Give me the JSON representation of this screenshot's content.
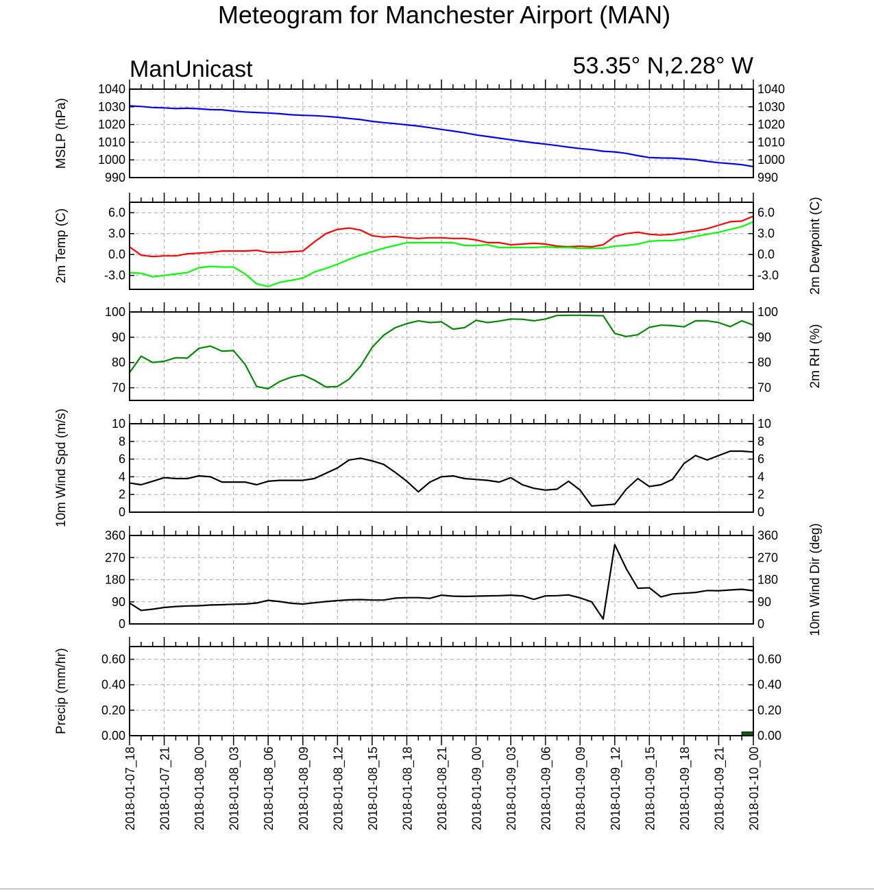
{
  "header": {
    "title": "Meteogram for Manchester Airport (MAN)",
    "source": "ManUnicast",
    "location": "53.35° N,2.28° W"
  },
  "x_axis": {
    "labels": [
      "2018-01-07_18",
      "2018-01-07_21",
      "2018-01-08_00",
      "2018-01-08_03",
      "2018-01-08_06",
      "2018-01-08_09",
      "2018-01-08_12",
      "2018-01-08_15",
      "2018-01-08_18",
      "2018-01-08_21",
      "2018-01-09_00",
      "2018-01-09_03",
      "2018-01-09_06",
      "2018-01-09_09",
      "2018-01-09_12",
      "2018-01-09_15",
      "2018-01-09_18",
      "2018-01-09_21",
      "2018-01-10_00"
    ]
  },
  "chart_data": [
    {
      "type": "line",
      "ylabel": "MSLP (hPa)",
      "ylim": [
        990,
        1040
      ],
      "yticks": [
        990,
        1000,
        1010,
        1020,
        1030,
        1040
      ],
      "right_ticks": true,
      "xlim": [
        0,
        54
      ],
      "grid": true,
      "series": [
        {
          "color": "#0000ff",
          "x": [
            0,
            1,
            2,
            3,
            4,
            5,
            6,
            7,
            8,
            9,
            10,
            11,
            12,
            13,
            14,
            15,
            16,
            17,
            18,
            19,
            20,
            21,
            22,
            23,
            24,
            25,
            26,
            27,
            28,
            29,
            30,
            31,
            32,
            33,
            34,
            35,
            36,
            37,
            38,
            39,
            40,
            41,
            42,
            43,
            44,
            45,
            46,
            47,
            48,
            49,
            50,
            51,
            52,
            53,
            54
          ],
          "y": [
            1030.6,
            1030.2,
            1029.6,
            1029.4,
            1029.0,
            1029.2,
            1028.9,
            1028.4,
            1028.3,
            1027.6,
            1027.1,
            1026.8,
            1026.5,
            1026.1,
            1025.5,
            1025.2,
            1025.0,
            1024.6,
            1024.1,
            1023.4,
            1022.8,
            1021.8,
            1021.1,
            1020.5,
            1019.8,
            1019.1,
            1018.2,
            1017.2,
            1016.3,
            1015.3,
            1014.1,
            1013.2,
            1012.3,
            1011.4,
            1010.5,
            1009.6,
            1008.9,
            1008.1,
            1007.2,
            1006.4,
            1005.8,
            1004.9,
            1004.5,
            1003.7,
            1002.4,
            1001.3,
            1001.1,
            1001.0,
            1000.6,
            1000.1,
            999.2,
            998.4,
            997.9,
            997.3,
            996.2
          ]
        }
      ]
    },
    {
      "type": "line",
      "ylabel": "2m Temp (C)",
      "ylabel_right": "2m Dewpoint (C)",
      "ylim": [
        -5,
        7.5
      ],
      "yticks": [
        -3.0,
        0.0,
        3.0,
        6.0
      ],
      "ytick_labels": [
        "-3.0",
        "0.0",
        "3.0",
        "6.0"
      ],
      "right_ticks": true,
      "xlim": [
        0,
        54
      ],
      "grid": true,
      "series": [
        {
          "color": "#ff0000",
          "x": [
            0,
            1,
            2,
            3,
            4,
            5,
            6,
            7,
            8,
            9,
            10,
            11,
            12,
            13,
            14,
            15,
            16,
            17,
            18,
            19,
            20,
            21,
            22,
            23,
            24,
            25,
            26,
            27,
            28,
            29,
            30,
            31,
            32,
            33,
            34,
            35,
            36,
            37,
            38,
            39,
            40,
            41,
            42,
            43,
            44,
            45,
            46,
            47,
            48,
            49,
            50,
            51,
            52,
            53,
            54
          ],
          "y": [
            1.1,
            -0.1,
            -0.3,
            -0.2,
            -0.2,
            0.1,
            0.2,
            0.3,
            0.5,
            0.5,
            0.5,
            0.6,
            0.3,
            0.3,
            0.4,
            0.5,
            1.8,
            3.0,
            3.6,
            3.8,
            3.5,
            2.7,
            2.5,
            2.6,
            2.4,
            2.3,
            2.4,
            2.4,
            2.3,
            2.3,
            2.1,
            1.7,
            1.7,
            1.4,
            1.5,
            1.6,
            1.5,
            1.2,
            1.1,
            1.2,
            1.1,
            1.4,
            2.6,
            3.0,
            3.2,
            2.9,
            2.8,
            2.9,
            3.2,
            3.4,
            3.7,
            4.2,
            4.7,
            4.8,
            5.5
          ]
        },
        {
          "color": "#00ff00",
          "x": [
            0,
            1,
            2,
            3,
            4,
            5,
            6,
            7,
            8,
            9,
            10,
            11,
            12,
            13,
            14,
            15,
            16,
            17,
            18,
            19,
            20,
            21,
            22,
            23,
            24,
            25,
            26,
            27,
            28,
            29,
            30,
            31,
            32,
            33,
            34,
            35,
            36,
            37,
            38,
            39,
            40,
            41,
            42,
            43,
            44,
            45,
            46,
            47,
            48,
            49,
            50,
            51,
            52,
            53,
            54
          ],
          "y": [
            -2.6,
            -2.7,
            -3.2,
            -3.0,
            -2.8,
            -2.6,
            -1.9,
            -1.7,
            -1.8,
            -1.8,
            -2.8,
            -4.2,
            -4.6,
            -4.0,
            -3.7,
            -3.4,
            -2.5,
            -2.0,
            -1.4,
            -0.7,
            -0.1,
            0.4,
            0.9,
            1.3,
            1.7,
            1.7,
            1.7,
            1.7,
            1.7,
            1.3,
            1.3,
            1.4,
            1.0,
            1.0,
            1.0,
            1.0,
            1.1,
            1.0,
            1.0,
            0.9,
            0.9,
            0.9,
            1.2,
            1.3,
            1.5,
            1.9,
            2.0,
            2.0,
            2.2,
            2.6,
            2.9,
            3.2,
            3.6,
            4.0,
            4.7
          ]
        }
      ]
    },
    {
      "type": "line",
      "ylabel_right": "2m RH (%)",
      "ylim": [
        65,
        100
      ],
      "yticks": [
        70,
        80,
        90,
        100
      ],
      "right_ticks": true,
      "xlim": [
        0,
        54
      ],
      "grid": true,
      "series": [
        {
          "color": "#008800",
          "x": [
            0,
            1,
            2,
            3,
            4,
            5,
            6,
            7,
            8,
            9,
            10,
            11,
            12,
            13,
            14,
            15,
            16,
            17,
            18,
            19,
            20,
            21,
            22,
            23,
            24,
            25,
            26,
            27,
            28,
            29,
            30,
            31,
            32,
            33,
            34,
            35,
            36,
            37,
            38,
            39,
            40,
            41,
            42,
            43,
            44,
            45,
            46,
            47,
            48,
            49,
            50,
            51,
            52,
            53,
            54
          ],
          "y": [
            76.0,
            82.5,
            80.0,
            80.5,
            81.9,
            81.7,
            85.6,
            86.5,
            84.5,
            84.7,
            79.3,
            70.5,
            69.6,
            72.5,
            74.2,
            75.1,
            73.0,
            70.3,
            70.5,
            73.4,
            78.6,
            86.0,
            90.8,
            93.8,
            95.4,
            96.5,
            95.8,
            96.1,
            93.2,
            93.8,
            96.7,
            95.8,
            96.4,
            97.2,
            97.1,
            96.5,
            97.2,
            98.6,
            98.7,
            98.7,
            98.6,
            98.5,
            91.5,
            90.3,
            91.0,
            93.9,
            94.8,
            94.6,
            94.1,
            96.5,
            96.5,
            95.8,
            94.2,
            96.5,
            94.8
          ]
        }
      ]
    },
    {
      "type": "line",
      "ylabel": "10m Wind Spd (m/s)",
      "ylim": [
        0,
        10
      ],
      "yticks": [
        0,
        2,
        4,
        6,
        8,
        10
      ],
      "right_ticks": true,
      "xlim": [
        0,
        54
      ],
      "grid": true,
      "series": [
        {
          "color": "#000000",
          "x": [
            0,
            1,
            2,
            3,
            4,
            5,
            6,
            7,
            8,
            9,
            10,
            11,
            12,
            13,
            14,
            15,
            16,
            17,
            18,
            19,
            20,
            21,
            22,
            23,
            24,
            25,
            26,
            27,
            28,
            29,
            30,
            31,
            32,
            33,
            34,
            35,
            36,
            37,
            38,
            39,
            40,
            41,
            42,
            43,
            44,
            45,
            46,
            47,
            48,
            49,
            50,
            51,
            52,
            53,
            54
          ],
          "y": [
            3.3,
            3.1,
            3.5,
            3.9,
            3.8,
            3.8,
            4.1,
            4.0,
            3.4,
            3.4,
            3.4,
            3.1,
            3.5,
            3.6,
            3.6,
            3.6,
            3.8,
            4.4,
            5.0,
            5.9,
            6.1,
            5.8,
            5.4,
            4.5,
            3.5,
            2.3,
            3.4,
            4.0,
            4.1,
            3.8,
            3.7,
            3.6,
            3.4,
            3.9,
            3.1,
            2.7,
            2.5,
            2.6,
            3.5,
            2.5,
            0.7,
            0.8,
            0.9,
            2.6,
            3.8,
            2.9,
            3.1,
            3.7,
            5.5,
            6.4,
            5.9,
            6.4,
            6.9,
            6.9,
            6.8
          ]
        }
      ]
    },
    {
      "type": "line",
      "ylabel_right": "10m Wind Dir (deg)",
      "ylim": [
        0,
        360
      ],
      "yticks": [
        0,
        90,
        180,
        270,
        360
      ],
      "right_ticks": true,
      "xlim": [
        0,
        54
      ],
      "grid": true,
      "series": [
        {
          "color": "#000000",
          "x": [
            0,
            1,
            2,
            3,
            4,
            5,
            6,
            7,
            8,
            9,
            10,
            11,
            12,
            13,
            14,
            15,
            16,
            17,
            18,
            19,
            20,
            21,
            22,
            23,
            24,
            25,
            26,
            27,
            28,
            29,
            30,
            31,
            32,
            33,
            34,
            35,
            36,
            37,
            38,
            39,
            40,
            41,
            42,
            43,
            44,
            45,
            46,
            47,
            48,
            49,
            50,
            51,
            52,
            53,
            54
          ],
          "y": [
            85,
            55,
            60,
            67,
            71,
            73,
            74,
            77,
            78,
            80,
            81,
            85,
            96,
            91,
            84,
            81,
            86,
            91,
            95,
            98,
            99,
            97,
            97,
            105,
            107,
            107,
            104,
            117,
            113,
            112,
            113,
            114,
            115,
            117,
            114,
            100,
            114,
            115,
            118,
            106,
            90,
            20,
            323,
            225,
            145,
            147,
            110,
            122,
            125,
            128,
            136,
            135,
            138,
            141,
            135
          ]
        }
      ]
    },
    {
      "type": "bar",
      "ylabel": "Precip (mm/hr)",
      "ylim": [
        0,
        0.7
      ],
      "yticks": [
        0.0,
        0.2,
        0.4,
        0.6
      ],
      "ytick_labels": [
        "0.00",
        "0.20",
        "0.40",
        "0.60"
      ],
      "right_ticks": true,
      "xlim": [
        0,
        54
      ],
      "grid": true,
      "series": [
        {
          "color": "#006400",
          "x": [
            53
          ],
          "y": [
            0.03
          ]
        }
      ]
    }
  ]
}
